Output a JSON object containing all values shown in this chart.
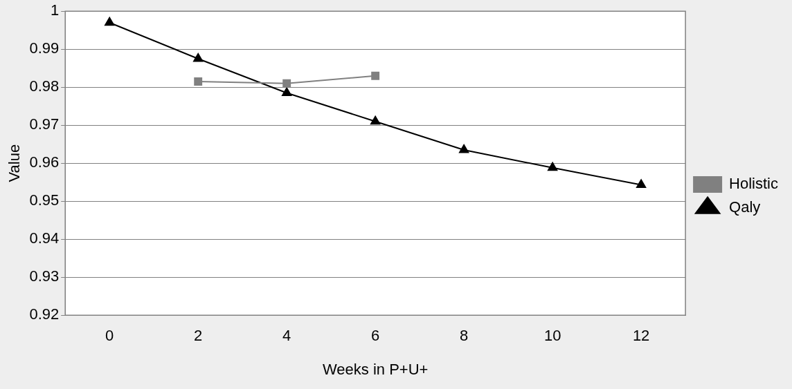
{
  "chart_data": {
    "type": "line",
    "xlabel": "Weeks in P+U+",
    "ylabel": "Value",
    "categories": [
      "0",
      "2",
      "4",
      "6",
      "8",
      "10",
      "12"
    ],
    "series": [
      {
        "name": "Holistic",
        "color": "#808080",
        "marker": "square",
        "values": [
          null,
          0.9815,
          0.981,
          0.983,
          null,
          null,
          null
        ]
      },
      {
        "name": "Qaly",
        "color": "#000000",
        "marker": "triangle",
        "values": [
          0.997,
          0.9875,
          0.9785,
          0.971,
          0.9635,
          0.9588,
          0.9543
        ]
      }
    ],
    "ylim": [
      0.92,
      1
    ],
    "yticks": [
      0.92,
      0.93,
      0.94,
      0.95,
      0.96,
      0.97,
      0.98,
      0.99,
      1
    ],
    "grid": "y",
    "legend": "right",
    "line_style": "solid"
  }
}
